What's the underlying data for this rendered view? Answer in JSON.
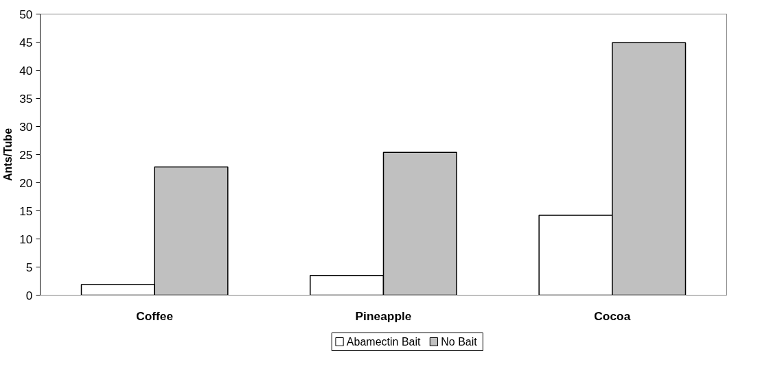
{
  "chart_data": {
    "type": "bar",
    "ylabel": "Ants/Tube",
    "categories": [
      "Coffee",
      "Pineapple",
      "Cocoa"
    ],
    "series": [
      {
        "name": "Abamectin Bait",
        "color": "#ffffff",
        "values": [
          1.9,
          3.5,
          14.2
        ]
      },
      {
        "name": "No Bait",
        "color": "#c0c0c0",
        "values": [
          22.8,
          25.4,
          44.9
        ]
      }
    ],
    "ylim": [
      0,
      50
    ],
    "yticks": [
      0,
      5,
      10,
      15,
      20,
      25,
      30,
      35,
      40,
      45,
      50
    ],
    "grid": false,
    "legend": "bottom"
  }
}
